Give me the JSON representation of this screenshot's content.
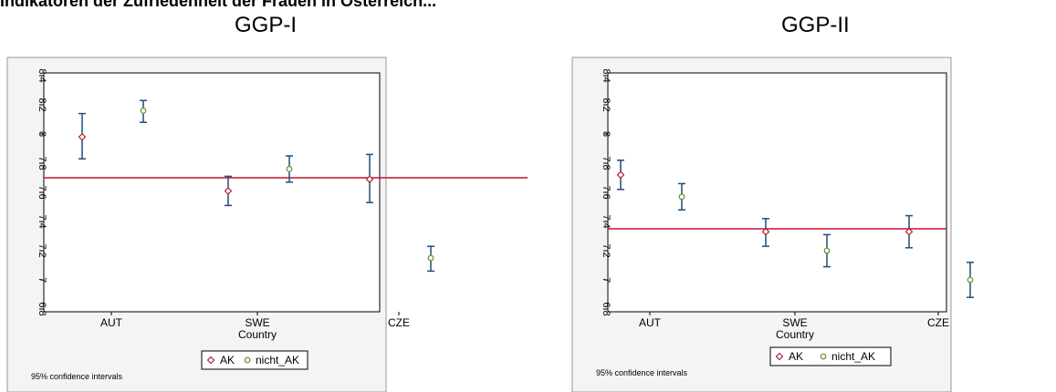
{
  "page": {
    "top_text": "Indikatoren der Zufriedenheit der Frauen in Österreich..."
  },
  "colors": {
    "ci": "#1f4e79",
    "ak": "#b22234",
    "nicht_ak": "#6b8e23",
    "refline": "#c8102e",
    "frame": "#9a9a9a",
    "plot_bg": "#ffffff",
    "outer_bg": "#f2f4f6"
  },
  "chart_data": [
    {
      "type": "scatter",
      "title": "GGP-I",
      "xlabel": "Country",
      "categories": [
        "AUT",
        "SWE",
        "CZE"
      ],
      "ylim": [
        6.8,
        8.4
      ],
      "yticks": [
        "6.8",
        "7",
        "7.2",
        "7.4",
        "7.6",
        "7.8",
        "8",
        "8.2",
        "8.4"
      ],
      "reference_line": 7.7,
      "series": [
        {
          "name": "AK",
          "values": [
            7.98,
            7.61,
            7.69
          ],
          "ci_low": [
            7.83,
            7.51,
            7.53
          ],
          "ci_high": [
            8.14,
            7.71,
            7.86
          ]
        },
        {
          "name": "nicht_AK",
          "values": [
            8.16,
            7.76,
            7.15
          ],
          "ci_low": [
            8.08,
            7.67,
            7.06
          ],
          "ci_high": [
            8.23,
            7.85,
            7.23
          ]
        }
      ],
      "note": "95% confidence intervals",
      "legend": "bottom"
    },
    {
      "type": "scatter",
      "title": "GGP-II",
      "xlabel": "Country",
      "categories": [
        "AUT",
        "SWE",
        "CZE"
      ],
      "ylim": [
        6.8,
        8.4
      ],
      "yticks": [
        "6.8",
        "7",
        "7.2",
        "7.4",
        "7.6",
        "7.8",
        "8",
        "8.2",
        "8.4"
      ],
      "reference_line": 7.35,
      "series": [
        {
          "name": "AK",
          "values": [
            7.72,
            7.33,
            7.33
          ],
          "ci_low": [
            7.62,
            7.23,
            7.22
          ],
          "ci_high": [
            7.82,
            7.42,
            7.44
          ]
        },
        {
          "name": "nicht_AK",
          "values": [
            7.57,
            7.2,
            7.0
          ],
          "ci_low": [
            7.48,
            7.09,
            6.88
          ],
          "ci_high": [
            7.66,
            7.31,
            7.12
          ]
        }
      ],
      "note": "95% confidence intervals",
      "legend": "bottom"
    }
  ]
}
